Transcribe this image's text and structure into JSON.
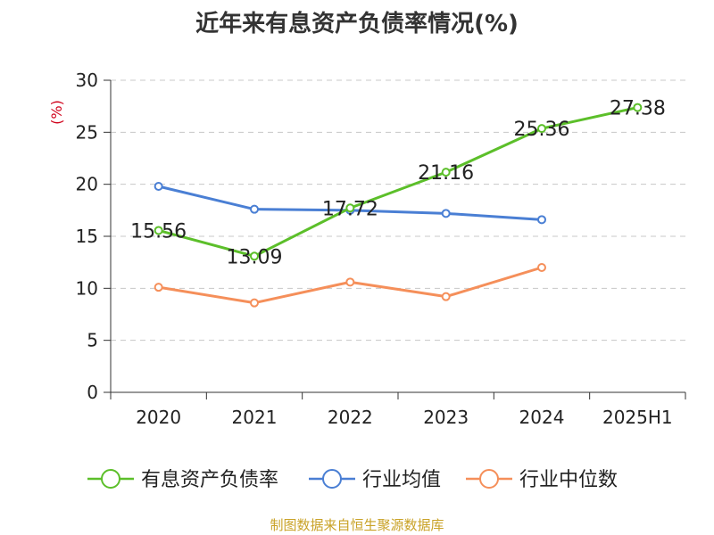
{
  "chart_data": {
    "type": "line",
    "title": "近年来有息资产负债率情况(%)",
    "ylabel": "(%)",
    "xlabel": "",
    "categories": [
      "2020",
      "2021",
      "2022",
      "2023",
      "2024",
      "2025H1"
    ],
    "ylim": [
      0,
      30
    ],
    "yticks": [
      0,
      5,
      10,
      15,
      20,
      25,
      30
    ],
    "grid": true,
    "legend_position": "bottom",
    "series": [
      {
        "name": "有息资产负债率",
        "color": "#5cbf2a",
        "values": [
          15.56,
          13.09,
          17.72,
          21.16,
          25.36,
          27.38
        ],
        "show_labels": true
      },
      {
        "name": "行业均值",
        "color": "#4a7fd4",
        "values": [
          19.8,
          17.6,
          17.5,
          17.2,
          16.6,
          null
        ],
        "show_labels": false
      },
      {
        "name": "行业中位数",
        "color": "#f58f5a",
        "values": [
          10.1,
          8.6,
          10.6,
          9.2,
          12.0,
          null
        ],
        "show_labels": false
      }
    ]
  },
  "source": "制图数据来自恒生聚源数据库"
}
